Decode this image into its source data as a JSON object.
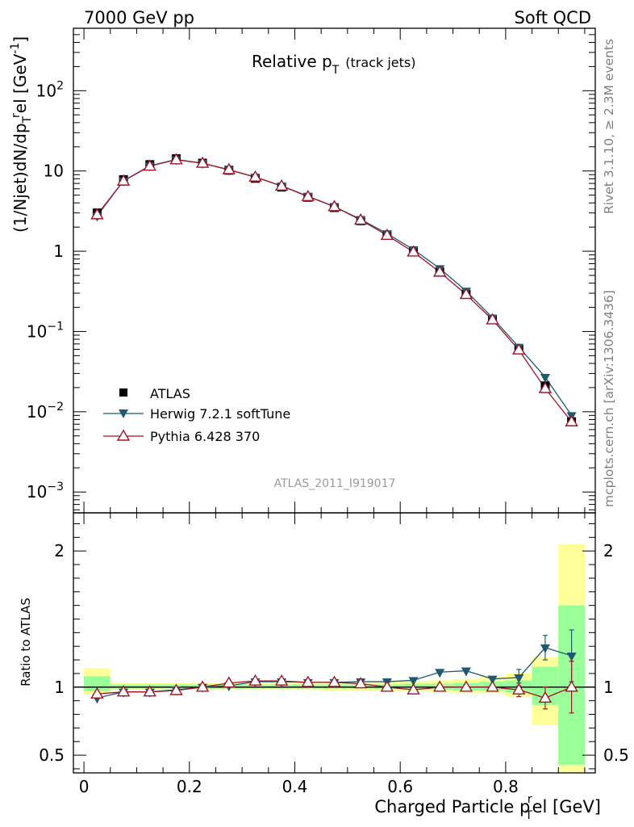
{
  "header": {
    "left_label": "7000 GeV pp",
    "right_label": "Soft QCD"
  },
  "side_labels": {
    "rivet": "Rivet 3.1.10, ≥ 2.3M events",
    "mcplots": "mcplots.cern.ch [arXiv:1306.3436]"
  },
  "colors": {
    "atlas": "#000000",
    "herwig": "#1f5a6e",
    "pythia": "#a0132a",
    "band_outer": "#ffff99",
    "band_inner": "#99ff99"
  },
  "chart_data": [
    {
      "type": "line",
      "title_main": "Relative p",
      "title_sub": "T",
      "title_extra": "(track jets)",
      "ylabel": "(1/Njet)dN/dp_T^rel [GeV⁻¹]",
      "ylabel_parts": {
        "a": "(1/Njet)dN/dp",
        "b": "T",
        "c": "r",
        "d": "el [GeV",
        "e": "-1",
        "f": "]"
      },
      "yscale": "log",
      "ylim": [
        0.00055,
        600
      ],
      "xlim": [
        -0.02,
        0.97
      ],
      "ytick_labels": [
        {
          "base": "10",
          "exp": "2",
          "value": 100
        },
        {
          "base": "10",
          "exp": "",
          "value": 10
        },
        {
          "base": "1",
          "exp": "",
          "value": 1
        },
        {
          "base": "10",
          "exp": "−1",
          "value": 0.1
        },
        {
          "base": "10",
          "exp": "−2",
          "value": 0.01
        },
        {
          "base": "10",
          "exp": "−3",
          "value": 0.001
        }
      ],
      "x": [
        0.025,
        0.075,
        0.125,
        0.175,
        0.225,
        0.275,
        0.325,
        0.375,
        0.425,
        0.475,
        0.525,
        0.575,
        0.625,
        0.675,
        0.725,
        0.775,
        0.825,
        0.875,
        0.925
      ],
      "series": [
        {
          "name": "ATLAS",
          "marker": "square",
          "values": [
            3.0,
            7.8,
            12.0,
            14.2,
            12.5,
            10.2,
            8.1,
            6.3,
            4.7,
            3.5,
            2.4,
            1.6,
            1.0,
            0.55,
            0.29,
            0.14,
            0.06,
            0.021,
            0.0075
          ]
        },
        {
          "name": "Herwig 7.2.1 softTune",
          "marker": "triangle-down",
          "values": [
            2.75,
            7.55,
            11.6,
            13.9,
            12.5,
            10.3,
            8.4,
            6.5,
            4.85,
            3.6,
            2.5,
            1.66,
            1.05,
            0.61,
            0.32,
            0.148,
            0.064,
            0.027,
            0.009
          ]
        },
        {
          "name": "Pythia 6.428 370",
          "marker": "triangle-up-open",
          "values": [
            2.85,
            7.5,
            11.5,
            13.8,
            12.5,
            10.4,
            8.4,
            6.5,
            4.8,
            3.6,
            2.45,
            1.58,
            0.98,
            0.55,
            0.29,
            0.14,
            0.059,
            0.0195,
            0.0075
          ]
        }
      ],
      "legend": {
        "placement": "bottom-left",
        "entries": [
          "ATLAS",
          "Herwig 7.2.1 softTune",
          "Pythia 6.428 370"
        ]
      },
      "watermark": "ATLAS_2011_I919017"
    },
    {
      "type": "line",
      "ylabel": "Ratio to ATLAS",
      "xlabel": "Charged Particle p_T^rel [GeV]",
      "xlabel_parts": {
        "a": "Charged Particle p",
        "b": "T",
        "c": "r",
        "d": "el [GeV]"
      },
      "xlim": [
        -0.02,
        0.97
      ],
      "ylim": [
        0.37,
        2.28
      ],
      "xtick_labels": [
        "0",
        "0.2",
        "0.4",
        "0.6",
        "0.8"
      ],
      "xtick_values": [
        0,
        0.2,
        0.4,
        0.6,
        0.8
      ],
      "ytick_labels": [
        "0.5",
        "1",
        "2"
      ],
      "ytick_values": [
        0.5,
        1,
        2
      ],
      "reference_line": 1,
      "bins": [
        {
          "lo": 0.0,
          "hi": 0.05,
          "outer": [
            0.95,
            1.14
          ],
          "inner": [
            0.97,
            1.08
          ]
        },
        {
          "lo": 0.05,
          "hi": 0.1,
          "outer": [
            0.98,
            1.03
          ],
          "inner": [
            0.99,
            1.02
          ]
        },
        {
          "lo": 0.1,
          "hi": 0.15,
          "outer": [
            0.98,
            1.03
          ],
          "inner": [
            0.99,
            1.02
          ]
        },
        {
          "lo": 0.15,
          "hi": 0.2,
          "outer": [
            0.98,
            1.03
          ],
          "inner": [
            0.99,
            1.02
          ]
        },
        {
          "lo": 0.2,
          "hi": 0.25,
          "outer": [
            0.98,
            1.03
          ],
          "inner": [
            0.99,
            1.02
          ]
        },
        {
          "lo": 0.25,
          "hi": 0.3,
          "outer": [
            0.98,
            1.03
          ],
          "inner": [
            0.99,
            1.02
          ]
        },
        {
          "lo": 0.3,
          "hi": 0.35,
          "outer": [
            0.98,
            1.03
          ],
          "inner": [
            0.99,
            1.02
          ]
        },
        {
          "lo": 0.35,
          "hi": 0.4,
          "outer": [
            0.98,
            1.03
          ],
          "inner": [
            0.99,
            1.02
          ]
        },
        {
          "lo": 0.4,
          "hi": 0.45,
          "outer": [
            0.98,
            1.03
          ],
          "inner": [
            0.99,
            1.02
          ]
        },
        {
          "lo": 0.45,
          "hi": 0.5,
          "outer": [
            0.975,
            1.035
          ],
          "inner": [
            0.99,
            1.02
          ]
        },
        {
          "lo": 0.5,
          "hi": 0.55,
          "outer": [
            0.975,
            1.035
          ],
          "inner": [
            0.99,
            1.02
          ]
        },
        {
          "lo": 0.55,
          "hi": 0.6,
          "outer": [
            0.97,
            1.04
          ],
          "inner": [
            0.985,
            1.02
          ]
        },
        {
          "lo": 0.6,
          "hi": 0.65,
          "outer": [
            0.97,
            1.045
          ],
          "inner": [
            0.985,
            1.025
          ]
        },
        {
          "lo": 0.65,
          "hi": 0.7,
          "outer": [
            0.965,
            1.05
          ],
          "inner": [
            0.98,
            1.025
          ]
        },
        {
          "lo": 0.7,
          "hi": 0.75,
          "outer": [
            0.955,
            1.06
          ],
          "inner": [
            0.975,
            1.03
          ]
        },
        {
          "lo": 0.75,
          "hi": 0.8,
          "outer": [
            0.955,
            1.08
          ],
          "inner": [
            0.975,
            1.04
          ]
        },
        {
          "lo": 0.8,
          "hi": 0.85,
          "outer": [
            0.93,
            1.1
          ],
          "inner": [
            0.96,
            1.05
          ]
        },
        {
          "lo": 0.85,
          "hi": 0.9,
          "outer": [
            0.72,
            1.22
          ],
          "inner": [
            0.87,
            1.15
          ]
        },
        {
          "lo": 0.9,
          "hi": 0.95,
          "outer": [
            0.37,
            2.05
          ],
          "inner": [
            0.43,
            1.6
          ]
        }
      ],
      "series": [
        {
          "name": "Herwig 7.2.1 softTune",
          "marker": "triangle-down",
          "values": [
            0.92,
            0.965,
            0.965,
            0.98,
            1.0,
            1.01,
            1.04,
            1.04,
            1.035,
            1.035,
            1.04,
            1.04,
            1.05,
            1.11,
            1.12,
            1.06,
            1.07,
            1.29,
            1.23
          ],
          "err": [
            0,
            0,
            0,
            0,
            0,
            0,
            0,
            0,
            0,
            0,
            0,
            0,
            0,
            0,
            0,
            0,
            0.06,
            0.09,
            0.19
          ]
        },
        {
          "name": "Pythia 6.428 370",
          "marker": "triangle-up-open",
          "values": [
            0.95,
            0.965,
            0.965,
            0.975,
            1.0,
            1.03,
            1.045,
            1.045,
            1.035,
            1.035,
            1.025,
            1.0,
            0.98,
            1.0,
            1.0,
            1.0,
            0.98,
            0.92,
            1.0
          ],
          "err": [
            0,
            0,
            0,
            0,
            0,
            0,
            0,
            0,
            0,
            0,
            0,
            0,
            0,
            0,
            0,
            0,
            0.05,
            0.08,
            0.19
          ]
        }
      ]
    }
  ]
}
